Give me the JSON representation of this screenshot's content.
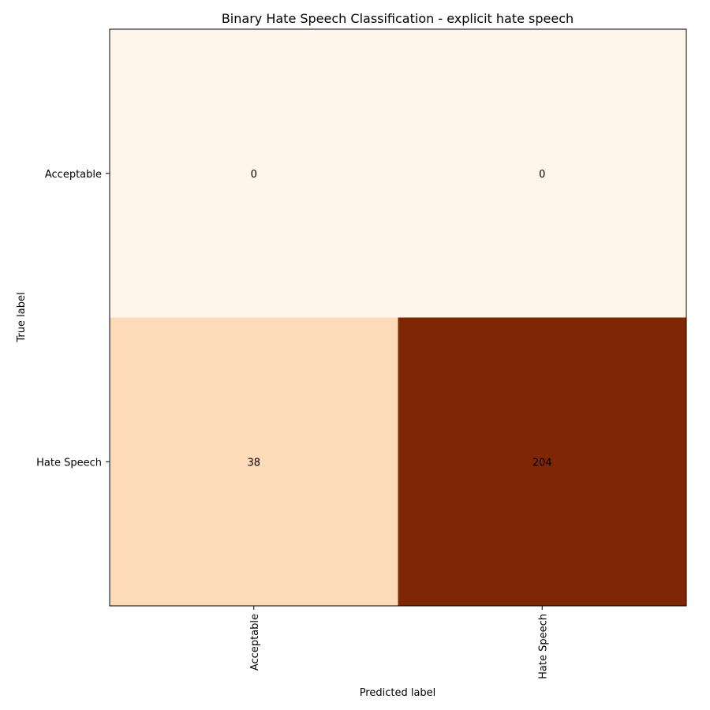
{
  "chart_data": {
    "type": "heatmap",
    "title": "Binary Hate Speech Classification - explicit hate speech",
    "xlabel": "Predicted label",
    "ylabel": "True label",
    "x_categories": [
      "Acceptable",
      "Hate Speech"
    ],
    "y_categories": [
      "Acceptable",
      "Hate Speech"
    ],
    "values": [
      [
        0,
        0
      ],
      [
        38,
        204
      ]
    ],
    "colormap": "Oranges",
    "color_low": "#fff5eb",
    "color_high": "#7f2704",
    "grid": false,
    "colorbar": false
  }
}
